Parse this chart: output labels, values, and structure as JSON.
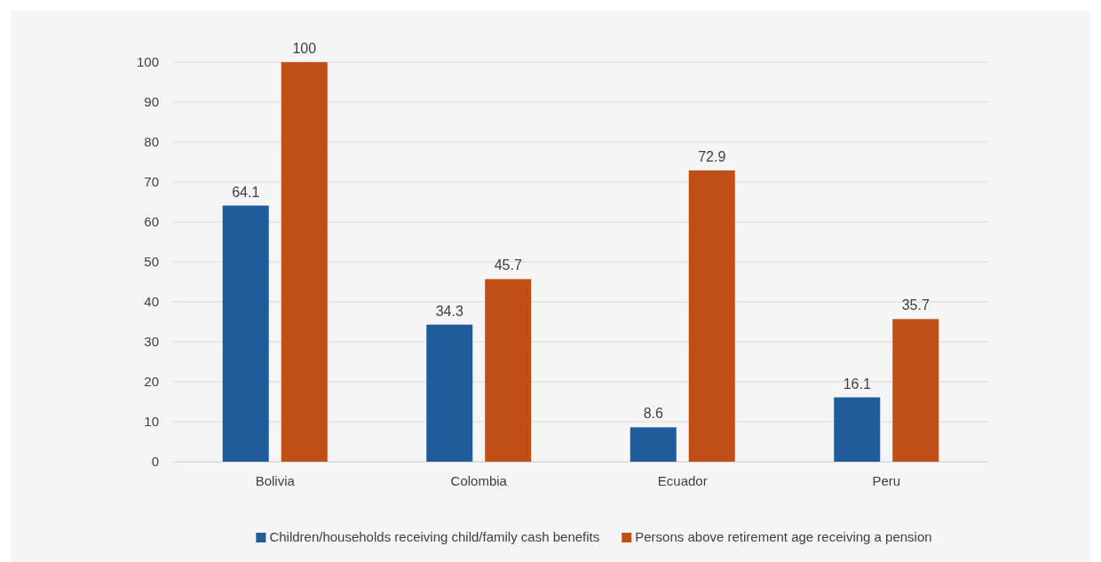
{
  "chart_data": {
    "type": "bar",
    "categories": [
      "Bolivia",
      "Colombia",
      "Ecuador",
      "Peru"
    ],
    "series": [
      {
        "name": "Children/households receiving child/family cash benefits",
        "color": "#1f5c99",
        "values": [
          64.1,
          34.3,
          8.6,
          16.1
        ]
      },
      {
        "name": "Persons above retirement age receiving a pension",
        "color": "#c04f15",
        "values": [
          100,
          45.7,
          72.9,
          35.7
        ]
      }
    ],
    "ylim": [
      0,
      100
    ],
    "yticks": [
      0,
      10,
      20,
      30,
      40,
      50,
      60,
      70,
      80,
      90,
      100
    ],
    "grid": "y",
    "legend": "bottom",
    "data_labels": true
  }
}
